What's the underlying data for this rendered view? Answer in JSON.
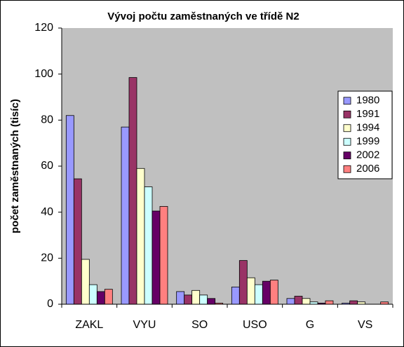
{
  "chart_data": {
    "type": "bar",
    "title": "Vývoj počtu zaměstnaných ve třídě N2",
    "y_label": "počet zaměstnaných (tisíc)",
    "categories": [
      "ZAKL",
      "VYU",
      "SO",
      "USO",
      "G",
      "VS"
    ],
    "series": [
      {
        "name": "1980",
        "color": "#9999ff",
        "values": [
          82,
          77,
          5.5,
          7.5,
          2.5,
          0.5
        ]
      },
      {
        "name": "1991",
        "color": "#993366",
        "values": [
          54.5,
          98.5,
          4,
          19,
          3.5,
          1.5
        ]
      },
      {
        "name": "1994",
        "color": "#ffffcc",
        "values": [
          19.5,
          59,
          6,
          11.5,
          2.5,
          1
        ]
      },
      {
        "name": "1999",
        "color": "#ccffff",
        "values": [
          8.5,
          51,
          4,
          8.5,
          1,
          0
        ]
      },
      {
        "name": "2002",
        "color": "#660066",
        "values": [
          5.5,
          40.5,
          2.5,
          10,
          0.5,
          0
        ]
      },
      {
        "name": "2006",
        "color": "#ff8080",
        "values": [
          6.5,
          42.5,
          0.5,
          10.5,
          1.5,
          1
        ]
      }
    ],
    "ylim": [
      0,
      120
    ],
    "yticks": [
      0,
      20,
      40,
      60,
      80,
      100,
      120
    ],
    "grid": false,
    "legend": "right"
  }
}
